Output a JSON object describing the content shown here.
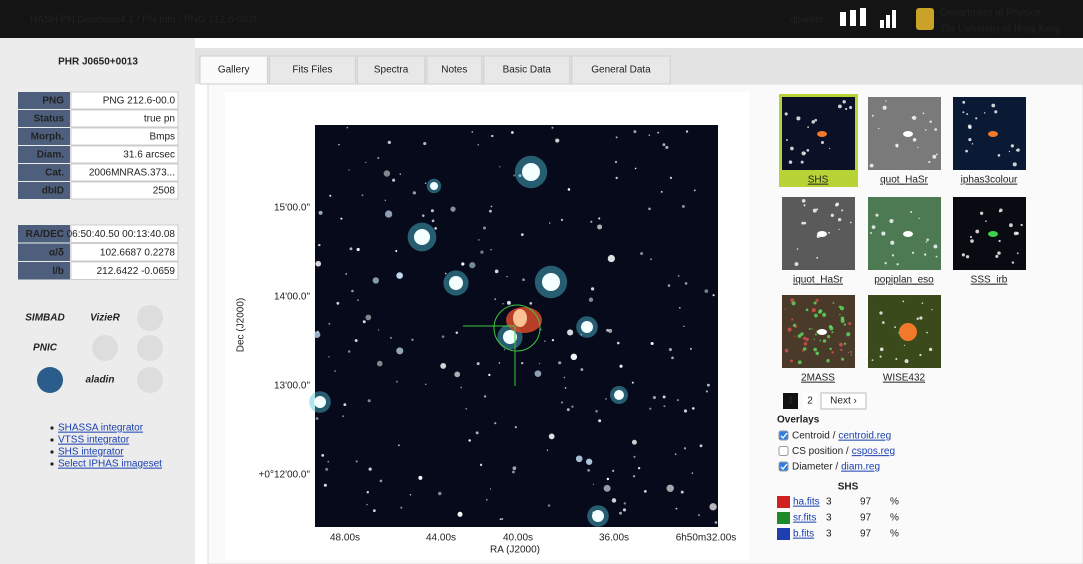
{
  "header": {
    "title": "HASH PN Database4.1 / PN Info / PNG 212.6-00.0",
    "user": "qparker",
    "department": "Department of Physics",
    "university": "The University of Hong Kong"
  },
  "sidebar": {
    "object_name": "PHR J0650+0013",
    "info": [
      {
        "label": "PNG",
        "value": "PNG 212.6-00.0"
      },
      {
        "label": "Status",
        "value": "true pn"
      },
      {
        "label": "Morph.",
        "value": "Bmps"
      },
      {
        "label": "Diam.",
        "value": "31.6 arcsec"
      },
      {
        "label": "Cat.",
        "value": "2006MNRAS.373..."
      },
      {
        "label": "dbID",
        "value": "2508"
      }
    ],
    "coords": [
      {
        "label": "RA/DEC",
        "value": "06:50:40.50 00:13:40.08"
      },
      {
        "label": "α/δ",
        "value": "102.6687 0.2278"
      },
      {
        "label": "l/b",
        "value": "212.6422 -0.0659"
      }
    ],
    "logos": [
      "SIMBAD",
      "VizieR",
      "PNIC",
      "aladin"
    ],
    "links": [
      "SHASSA integrator",
      "VTSS integrator",
      "SHS integrator",
      "Select IPHAS imageset"
    ]
  },
  "tabs": [
    "Gallery",
    "Fits Files",
    "Spectra",
    "Notes",
    "Basic Data",
    "General Data"
  ],
  "image": {
    "y_axis_label": "Dec (J2000)",
    "x_axis_label": "RA (J2000)",
    "yticks": [
      "15'00.0\"",
      "14'00.0\"",
      "13'00.0\"",
      "+0°12'00.0\""
    ],
    "xticks": [
      "48.00s",
      "44.00s",
      "40.00s",
      "36.00s",
      "6h50m32.00s"
    ]
  },
  "thumbnails": [
    "SHS",
    "quot_HaSr",
    "iphas3colour",
    "iquot_HaSr",
    "popiplan_eso",
    "SSS_irb",
    "2MASS",
    "WISE432"
  ],
  "pagination": [
    "1",
    "2",
    "Next ›"
  ],
  "overlays": {
    "title": "Overlays",
    "items": [
      {
        "label": "Centroid /",
        "file": "centroid.reg",
        "checked": true
      },
      {
        "label": "CS position /",
        "file": "cspos.reg",
        "checked": false
      },
      {
        "label": "Diameter /",
        "file": "diam.reg",
        "checked": true
      }
    ]
  },
  "band_table": {
    "title": "SHS",
    "rows": [
      [
        "ha.fits",
        3,
        97,
        "%"
      ],
      [
        "sr.fits",
        3,
        97,
        "%"
      ],
      [
        "b.fits",
        3,
        97,
        "%"
      ]
    ]
  }
}
